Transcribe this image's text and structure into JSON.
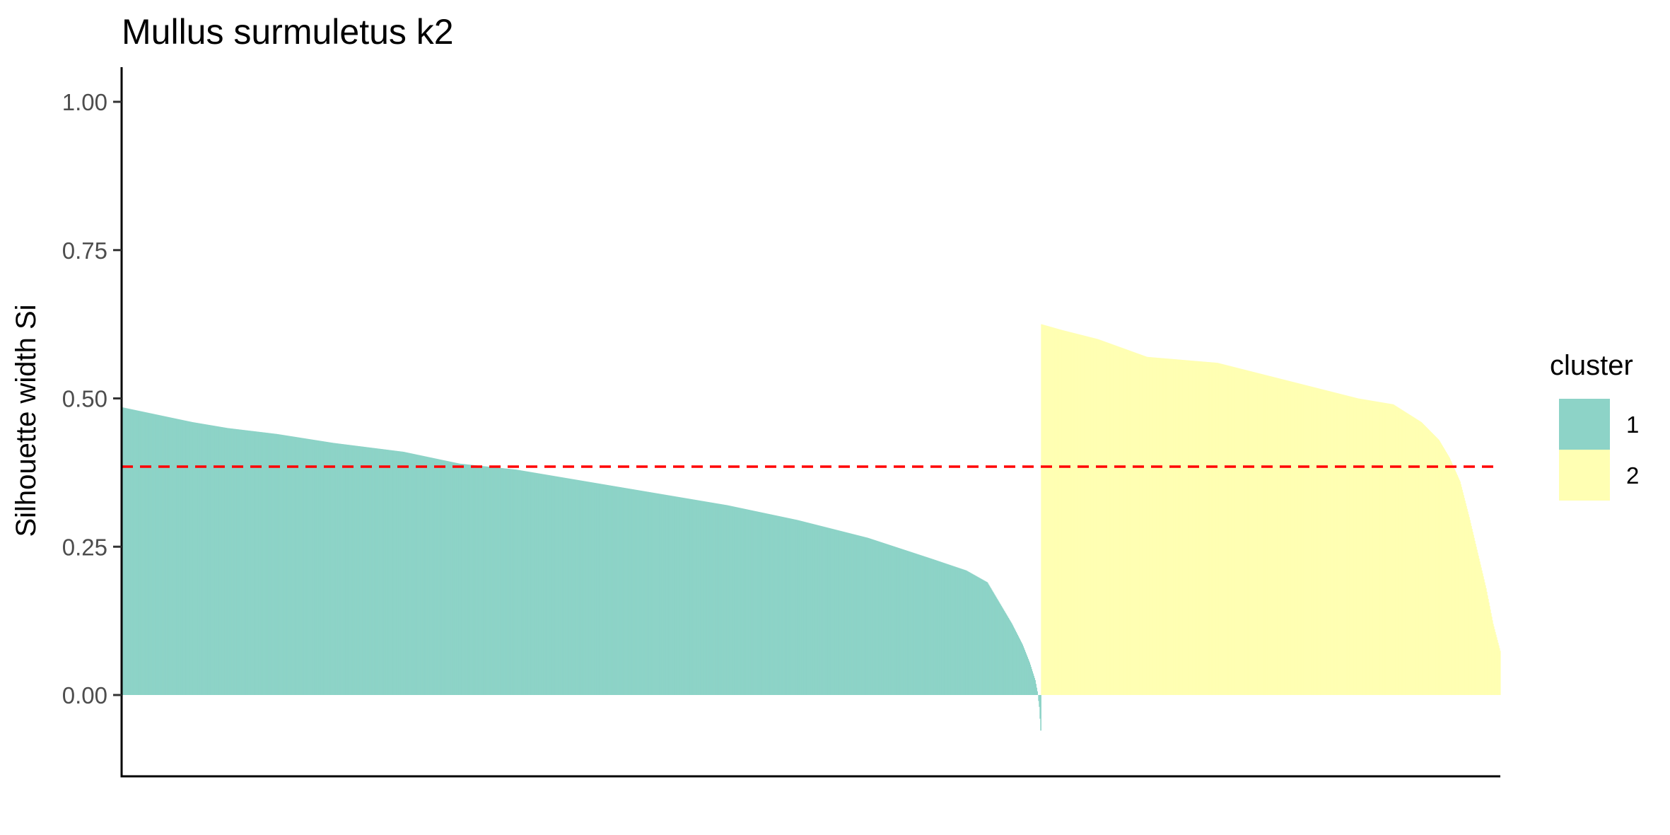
{
  "chart_data": {
    "type": "bar",
    "title": "Mullus surmuletus k2",
    "xlabel": "",
    "ylabel": "Silhouette width Si",
    "ylim": [
      -0.135,
      1.05
    ],
    "yticks": [
      "0.00",
      "0.25",
      "0.50",
      "0.75",
      "1.00"
    ],
    "ytick_values": [
      0.0,
      0.25,
      0.5,
      0.75,
      1.0
    ],
    "grid": false,
    "x_ticks_shown": false,
    "average_silhouette_width": 0.385,
    "average_line_color": "#ff0000",
    "average_line_style": "dashed",
    "legend": {
      "title": "cluster",
      "position": "right",
      "entries": [
        {
          "label": "1",
          "color": "#8dd3c7"
        },
        {
          "label": "2",
          "color": "#ffffb3"
        }
      ]
    },
    "series": [
      {
        "name": "1",
        "color": "#8dd3c7",
        "n_observations": 1307,
        "profile": [
          [
            0,
            0.485
          ],
          [
            20,
            0.48
          ],
          [
            60,
            0.47
          ],
          [
            100,
            0.46
          ],
          [
            150,
            0.45
          ],
          [
            220,
            0.44
          ],
          [
            300,
            0.425
          ],
          [
            400,
            0.41
          ],
          [
            480,
            0.39
          ],
          [
            560,
            0.38
          ],
          [
            660,
            0.36
          ],
          [
            760,
            0.34
          ],
          [
            860,
            0.32
          ],
          [
            960,
            0.295
          ],
          [
            1060,
            0.265
          ],
          [
            1150,
            0.23
          ],
          [
            1200,
            0.21
          ],
          [
            1230,
            0.19
          ],
          [
            1250,
            0.15
          ],
          [
            1265,
            0.12
          ],
          [
            1280,
            0.085
          ],
          [
            1290,
            0.055
          ],
          [
            1298,
            0.025
          ],
          [
            1302,
            0.0
          ],
          [
            1304,
            -0.02
          ],
          [
            1306,
            -0.06
          ],
          [
            1307,
            -0.085
          ]
        ]
      },
      {
        "name": "2",
        "color": "#ffffb3",
        "n_observations": 653,
        "profile": [
          [
            0,
            0.625
          ],
          [
            30,
            0.615
          ],
          [
            80,
            0.6
          ],
          [
            150,
            0.57
          ],
          [
            250,
            0.56
          ],
          [
            350,
            0.53
          ],
          [
            450,
            0.5
          ],
          [
            500,
            0.49
          ],
          [
            540,
            0.46
          ],
          [
            565,
            0.43
          ],
          [
            580,
            0.4
          ],
          [
            595,
            0.36
          ],
          [
            608,
            0.3
          ],
          [
            620,
            0.24
          ],
          [
            632,
            0.18
          ],
          [
            642,
            0.12
          ],
          [
            653,
            0.07
          ]
        ]
      }
    ]
  }
}
